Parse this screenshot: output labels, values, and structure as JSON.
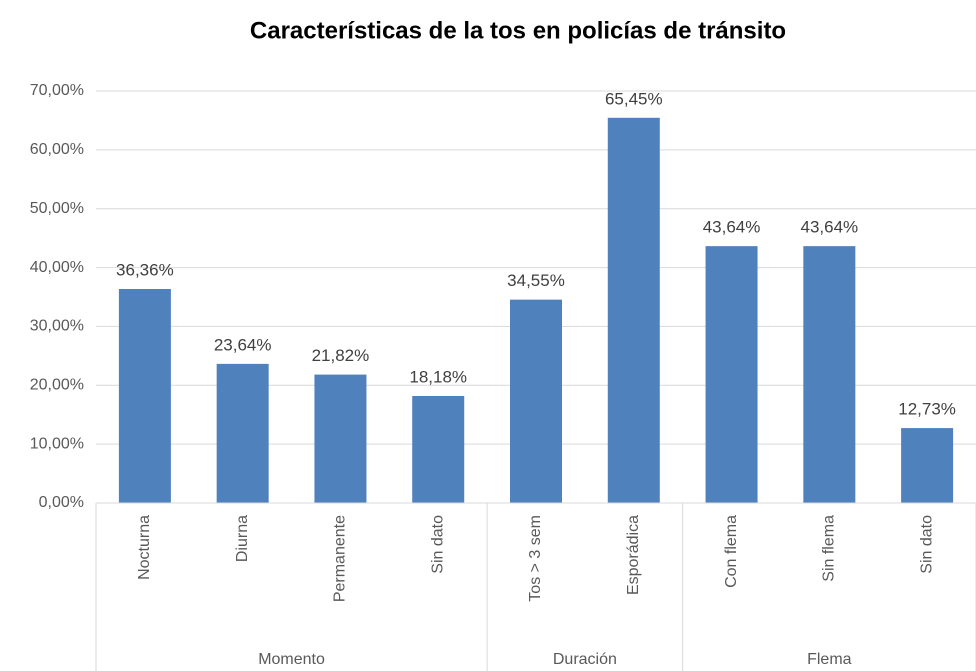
{
  "chart_data": {
    "type": "bar",
    "title": "Características de la tos en policías de tránsito",
    "color": "#4f81bd",
    "grid": true,
    "ylim": [
      0,
      70
    ],
    "yticks": [
      {
        "value": 0,
        "label": "0,00%"
      },
      {
        "value": 10,
        "label": "10,00%"
      },
      {
        "value": 20,
        "label": "20,00%"
      },
      {
        "value": 30,
        "label": "30,00%"
      },
      {
        "value": 40,
        "label": "40,00%"
      },
      {
        "value": 50,
        "label": "50,00%"
      },
      {
        "value": 60,
        "label": "60,00%"
      },
      {
        "value": 70,
        "label": "70,00%"
      }
    ],
    "groups": [
      {
        "name": "Momento",
        "categories": [
          "Nocturna",
          "Diurna",
          "Permanente",
          "Sin dato"
        ],
        "values": [
          36.36,
          23.64,
          21.82,
          18.18
        ],
        "value_labels": [
          "36,36%",
          "23,64%",
          "21,82%",
          "18,18%"
        ]
      },
      {
        "name": "Duración",
        "categories": [
          "Tos > 3 sem",
          "Esporádica"
        ],
        "values": [
          34.55,
          65.45
        ],
        "value_labels": [
          "34,55%",
          "65,45%"
        ]
      },
      {
        "name": "Flema",
        "categories": [
          "Con flema",
          "Sin flema",
          "Sin dato"
        ],
        "values": [
          43.64,
          43.64,
          12.73
        ],
        "value_labels": [
          "43,64%",
          "43,64%",
          "12,73%"
        ]
      }
    ]
  }
}
